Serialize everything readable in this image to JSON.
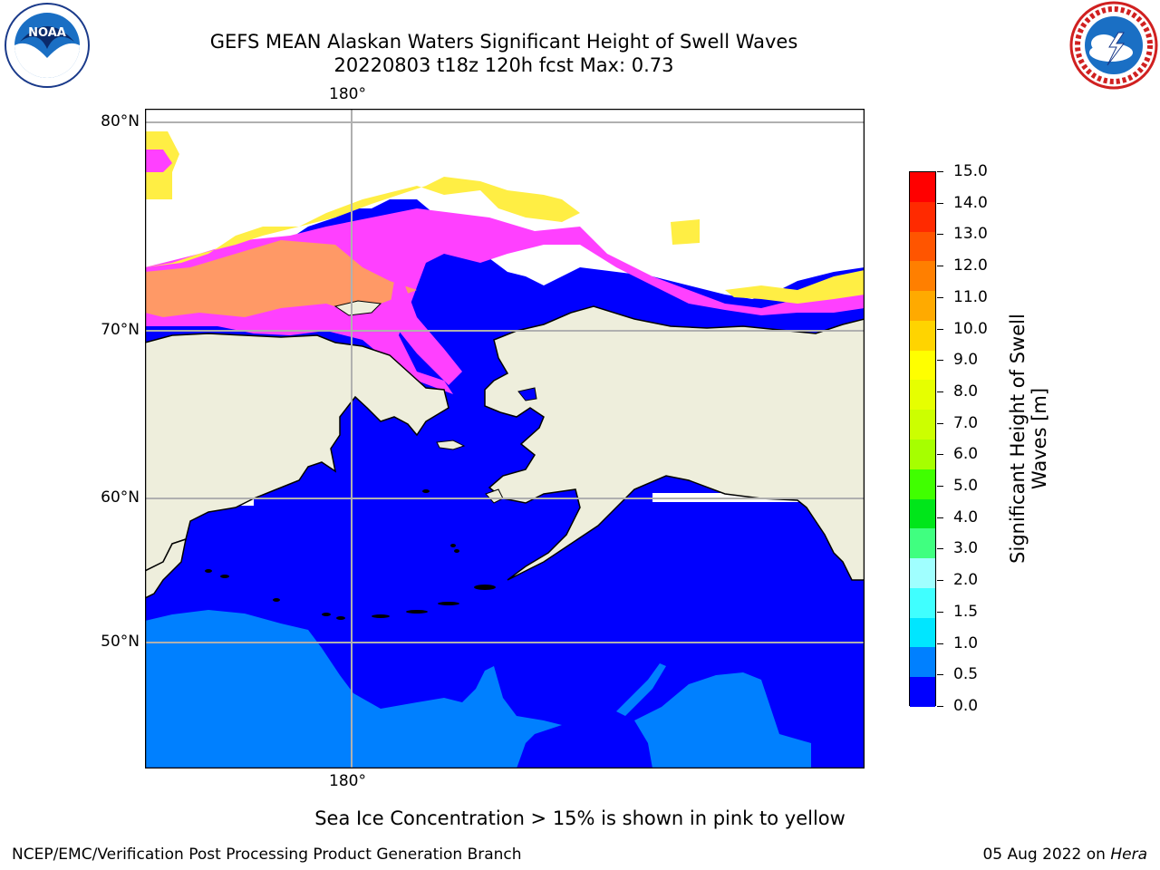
{
  "header": {
    "title_line1": "GEFS MEAN Alaskan Waters Significant Height of Swell Waves",
    "title_line2": "20220803 t18z 120h fcst   Max: 0.73"
  },
  "logos": {
    "left": {
      "name": "noaa-logo",
      "text": "NOAA"
    },
    "right": {
      "name": "nws-logo",
      "text": "NATIONAL WEATHER SERVICE"
    }
  },
  "map": {
    "lat_labels": [
      "80°N",
      "70°N",
      "60°N",
      "50°N"
    ],
    "lon_label_top": "180°",
    "lon_label_bottom": "180°",
    "colors": {
      "ocean_swell_0": "#0000ff",
      "ocean_swell_0_5": "#0080ff",
      "land": "#eeeedc",
      "ice_pink": "#ff40ff",
      "ice_orange": "#ff9966",
      "ice_yellow": "#ffee44",
      "gridline": "#b0b0b0",
      "coast": "#000000"
    }
  },
  "colorbar": {
    "title_line1": "Significant Height of Swell",
    "title_line2": "Waves [m]",
    "tick_labels": [
      "15.0",
      "14.0",
      "13.0",
      "12.0",
      "11.0",
      "10.0",
      "9.0",
      "8.0",
      "7.0",
      "6.0",
      "5.0",
      "4.0",
      "3.0",
      "2.0",
      "1.5",
      "1.0",
      "0.5",
      "0.0"
    ],
    "colors_top_to_bottom": [
      "#ff0000",
      "#ff2a00",
      "#ff5500",
      "#ff7f00",
      "#ffaa00",
      "#ffd400",
      "#ffff00",
      "#e6ff00",
      "#ccff00",
      "#a6ff00",
      "#40ff00",
      "#00e61a",
      "#40ff80",
      "#a0ffff",
      "#40ffff",
      "#00e6ff",
      "#0080ff",
      "#0000ff"
    ]
  },
  "caption": "Sea Ice Concentration > 15% is shown in pink to yellow",
  "footer": {
    "left": "NCEP/EMC/Verification Post Processing Product Generation Branch",
    "right_date": "05 Aug 2022 on ",
    "right_host": "Hera"
  }
}
